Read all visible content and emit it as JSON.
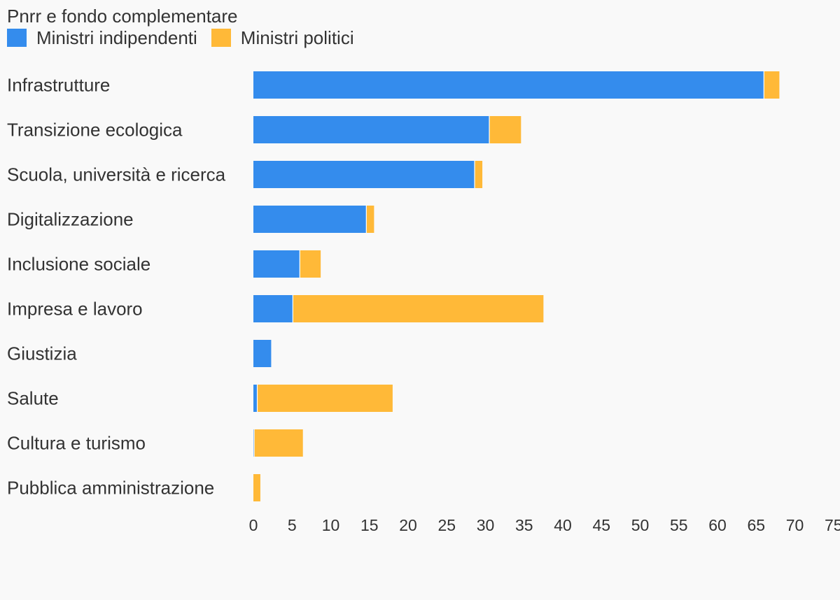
{
  "chart_data": {
    "type": "bar",
    "orientation": "horizontal",
    "stacked": true,
    "title": "Pnrr e fondo complementare",
    "categories": [
      "Infrastrutture",
      "Transizione ecologica",
      "Scuola, università e ricerca",
      "Digitalizzazione",
      "Inclusione sociale",
      "Impresa e lavoro",
      "Giustizia",
      "Salute",
      "Cultura e turismo",
      "Pubblica amministrazione"
    ],
    "series": [
      {
        "name": "Ministri indipendenti",
        "color": "#348ced",
        "values": [
          66.0,
          30.5,
          28.6,
          14.6,
          6.0,
          5.1,
          2.3,
          0.5,
          0.1,
          0.0
        ]
      },
      {
        "name": "Ministri politici",
        "color": "#ffb938",
        "values": [
          2.0,
          4.1,
          1.0,
          1.0,
          2.7,
          32.4,
          0.0,
          17.5,
          6.3,
          0.9
        ]
      }
    ],
    "xticks": [
      0,
      5,
      10,
      15,
      20,
      25,
      30,
      35,
      40,
      45,
      50,
      55,
      60,
      65,
      70,
      75
    ],
    "xlim": [
      0,
      75
    ],
    "grid": false,
    "legend_position": "top-left"
  }
}
